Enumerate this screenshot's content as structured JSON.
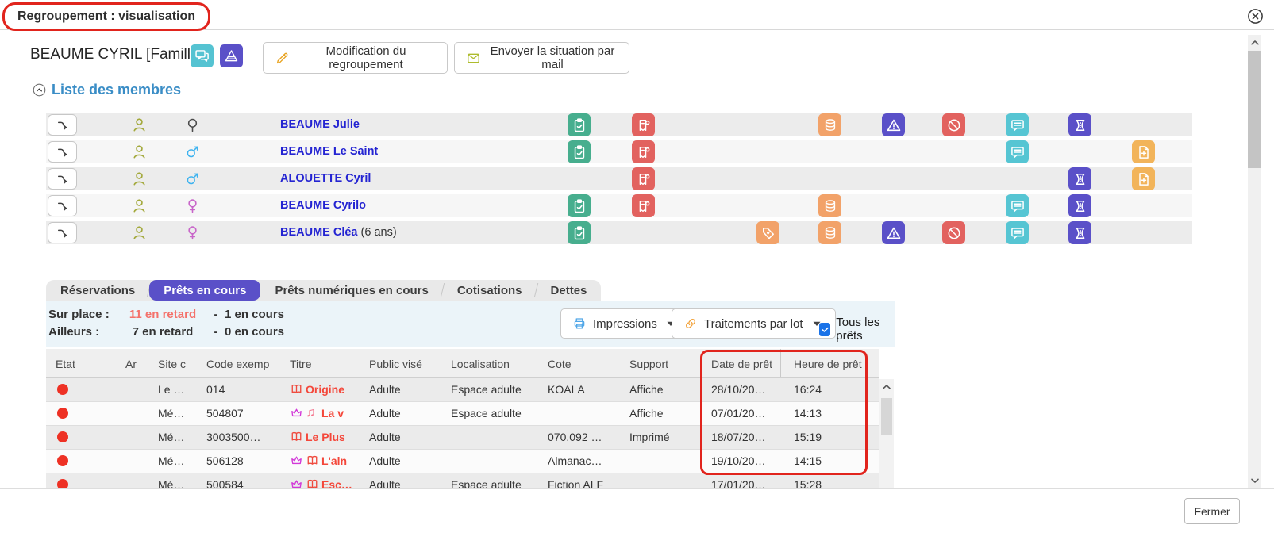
{
  "window": {
    "title": "Regroupement : visualisation"
  },
  "patron": {
    "name": "BEAUME CYRIL [Famille]",
    "icon_buttons": [
      {
        "icon": "chat-bubbles"
      },
      {
        "icon": "alert-triangle"
      }
    ],
    "actions": [
      {
        "icon": "pencil",
        "label": "Modification du regroupement"
      },
      {
        "icon": "envelope",
        "label": "Envoyer la situation par mail"
      }
    ]
  },
  "members_section": {
    "heading": "Liste des membres",
    "members": [
      {
        "name": "BEAUME Julie",
        "suffix": "",
        "gender": "neuter",
        "badges": [
          "clipboard-check",
          "receipt",
          "database",
          "warning-triangle",
          "prohibition",
          "comment",
          "ticket"
        ]
      },
      {
        "name": "BEAUME Le Saint",
        "suffix": "",
        "gender": "male",
        "badges": [
          "clipboard-check",
          "receipt",
          "comment",
          "document-plus"
        ]
      },
      {
        "name": "ALOUETTE Cyril",
        "suffix": "",
        "gender": "male",
        "badges": [
          "receipt",
          "ticket",
          "document-plus"
        ]
      },
      {
        "name": "BEAUME Cyrilo",
        "suffix": "",
        "gender": "female",
        "badges": [
          "clipboard-check",
          "receipt",
          "database",
          "comment",
          "ticket"
        ]
      },
      {
        "name": "BEAUME Cléa",
        "suffix": " (6 ans)",
        "gender": "female",
        "badges": [
          "clipboard-check",
          "tag-heart",
          "database",
          "warning-triangle",
          "prohibition",
          "comment",
          "ticket"
        ]
      }
    ]
  },
  "tabs": [
    {
      "label": "Réservations",
      "active": false
    },
    {
      "label": "Prêts en cours",
      "active": true
    },
    {
      "label": "Prêts numériques en cours",
      "active": false
    },
    {
      "label": "Cotisations",
      "active": false
    },
    {
      "label": "Dettes",
      "active": false
    }
  ],
  "summary": {
    "onsite_label": "Sur place :",
    "onsite_late": "11 en retard",
    "onsite_sep": "-",
    "onsite_current": "1 en cours",
    "elsewhere_label": "Ailleurs :",
    "elsewhere_late": "7 en retard",
    "elsewhere_sep": "-",
    "elsewhere_current": "0 en cours"
  },
  "toolbar": {
    "buttons": [
      {
        "icon": "printer",
        "label": "Impressions",
        "dropdown": true
      },
      {
        "icon": "chain",
        "label": "Traitements par lot",
        "dropdown": true
      }
    ],
    "checkbox": {
      "checked": true,
      "label": "Tous les prêts"
    }
  },
  "loans_table": {
    "columns": [
      "Etat",
      "Ar",
      "Site c",
      "Code exemp",
      "Titre",
      "Public visé",
      "Localisation",
      "Cote",
      "Support",
      "Date de prêt",
      "Heure de prêt"
    ],
    "rows": [
      {
        "etat": "late",
        "site": "Le …",
        "code": "014",
        "titre_icons": [
          "book"
        ],
        "titre": "Origine",
        "public": "Adulte",
        "localisation": "Espace adulte",
        "cote": "KOALA",
        "support": "Affiche",
        "date": "28/10/20…",
        "heure": "16:24"
      },
      {
        "etat": "late",
        "site": "Mé…",
        "code": "504807",
        "titre_icons": [
          "crown",
          "music"
        ],
        "titre": "La v",
        "public": "Adulte",
        "localisation": "Espace adulte",
        "cote": "",
        "support": "Affiche",
        "date": "07/01/20…",
        "heure": "14:13"
      },
      {
        "etat": "late",
        "site": "Mé…",
        "code": "3003500…",
        "titre_icons": [
          "book"
        ],
        "titre": "Le Plus",
        "public": "Adulte",
        "localisation": "",
        "cote": "070.092 …",
        "support": "Imprimé",
        "date": "18/07/20…",
        "heure": "15:19"
      },
      {
        "etat": "late",
        "site": "Mé…",
        "code": "506128",
        "titre_icons": [
          "crown",
          "book"
        ],
        "titre": "L'aln",
        "public": "Adulte",
        "localisation": "",
        "cote": "Almanac…",
        "support": "",
        "date": "19/10/20…",
        "heure": "14:15"
      },
      {
        "etat": "late",
        "site": "Mé…",
        "code": "500584",
        "titre_icons": [
          "crown",
          "book"
        ],
        "titre": "Esc…",
        "public": "Adulte",
        "localisation": "Espace adulte",
        "cote": "Fiction ALF",
        "support": "",
        "date": "17/01/20…",
        "heure": "15:28"
      }
    ]
  },
  "footer": {
    "close_button": "Fermer"
  },
  "icons": {
    "clipboard-check": "clipboard with check mark",
    "receipt": "receipt ticket",
    "tag-heart": "price tag with heart",
    "database": "database cylinder",
    "warning-triangle": "warning triangle",
    "prohibition": "prohibited sign",
    "comment": "speech bubble with lines",
    "ticket": "ticket stub with perforation",
    "document-plus": "document with plus",
    "book": "open book",
    "crown": "crown",
    "music": "music notes ♫",
    "swap-arrow": "curved transfer arrow",
    "person": "person outline",
    "male": "male sign ♂",
    "female": "female sign ♀",
    "neuter": "neuter sign ⚲"
  },
  "colors": {
    "accent_purple": "#5a50c8",
    "annotation_red": "#e1241d",
    "status_late_red": "#ee3124",
    "late_text": "#f4716b",
    "link_blue": "#2424d2",
    "heading_blue": "#3a8dc6",
    "badge_green": "#47ae8e",
    "badge_red": "#e2625f",
    "badge_orange": "#f2a269",
    "badge_cyan": "#56c5d3",
    "badge_yellow": "#f2b45a",
    "toolbar_bg": "#ebf4f9"
  }
}
